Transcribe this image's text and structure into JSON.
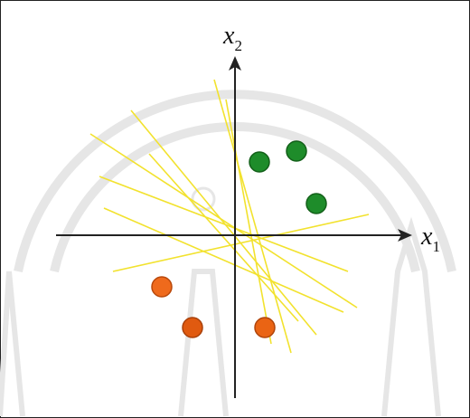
{
  "axes": {
    "x_label": {
      "base": "x",
      "sub": "1"
    },
    "y_label": {
      "base": "x",
      "sub": "2"
    }
  }
}
